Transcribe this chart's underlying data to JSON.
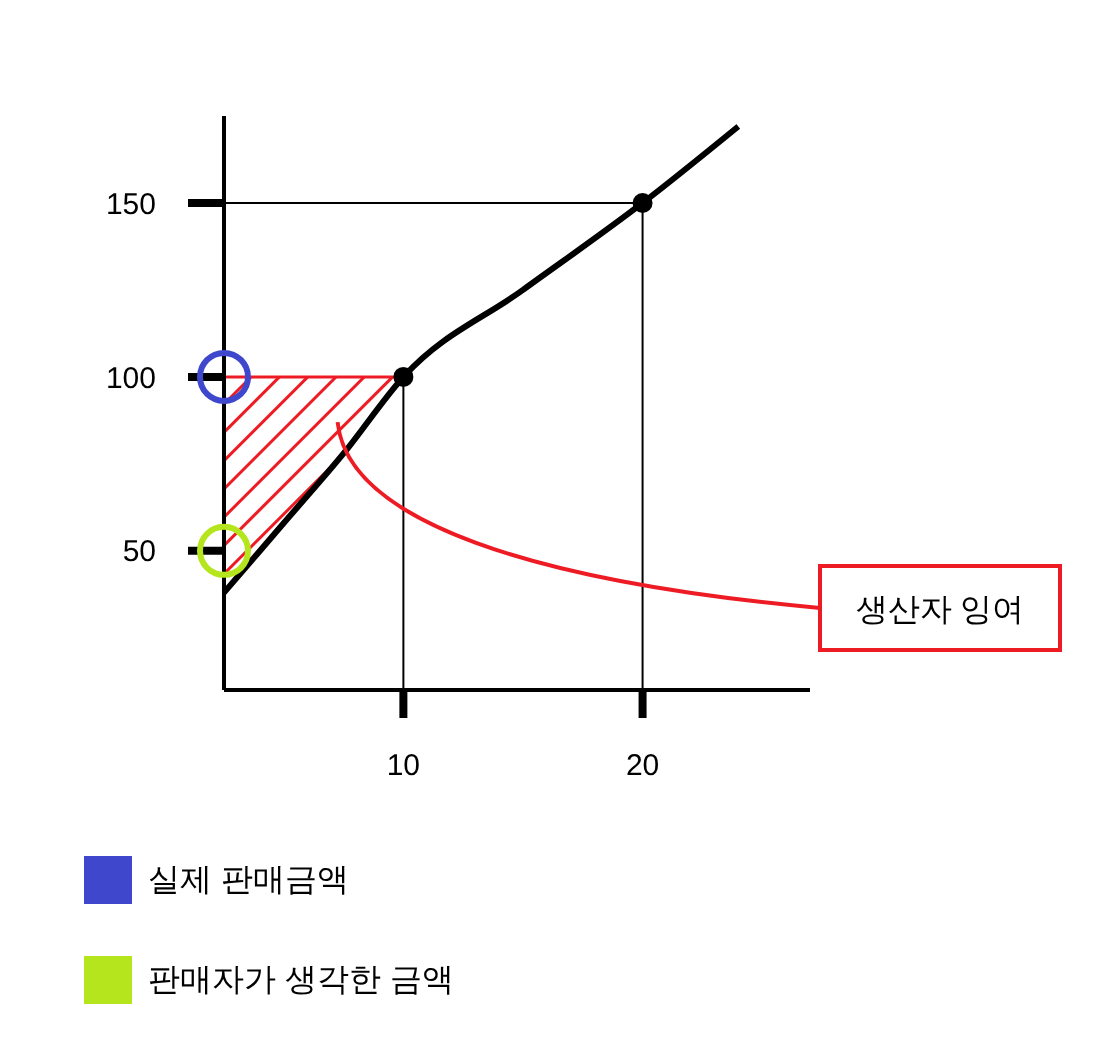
{
  "chart_data": {
    "type": "line",
    "xlim": [
      2.5,
      27
    ],
    "ylim": [
      10,
      175
    ],
    "xticks": [
      10,
      20
    ],
    "yticks": [
      50,
      100,
      150
    ],
    "legend": "bottom left",
    "series": [
      {
        "type": "line",
        "color": "#ed1c24",
        "x": [
          2.5,
          5,
          7.5,
          10
        ],
        "values": [
          100,
          100,
          100,
          100
        ],
        "lower": [
          38,
          58,
          78,
          100
        ],
        "upper": [
          100,
          100,
          100,
          100
        ]
      },
      {
        "type": "line",
        "color": "#000000",
        "x": [
          10,
          10
        ],
        "values": [
          100,
          10
        ]
      },
      {
        "type": "line",
        "color": "#000000",
        "x": [
          2.5,
          20,
          20
        ],
        "values": [
          150,
          150,
          10
        ]
      },
      {
        "color": "#000000",
        "x": [
          2.5,
          5,
          7.5,
          10,
          15,
          20,
          24
        ],
        "values": [
          38,
          58,
          78,
          100,
          125,
          150,
          172
        ]
      },
      {
        "type": "scatter",
        "color": "#000000",
        "x": [
          10,
          20
        ],
        "values": [
          100,
          150
        ]
      },
      {
        "name": "실제 판매금액",
        "type": "scatter",
        "color": "#3f48cc",
        "x": [
          2.5
        ],
        "values": [
          100
        ]
      },
      {
        "name": "판매자가 생각한 금액",
        "type": "scatter",
        "color": "#b5e61d",
        "x": [
          2.5
        ],
        "values": [
          50
        ]
      }
    ],
    "annotations": [
      "생산자 잉여"
    ]
  }
}
